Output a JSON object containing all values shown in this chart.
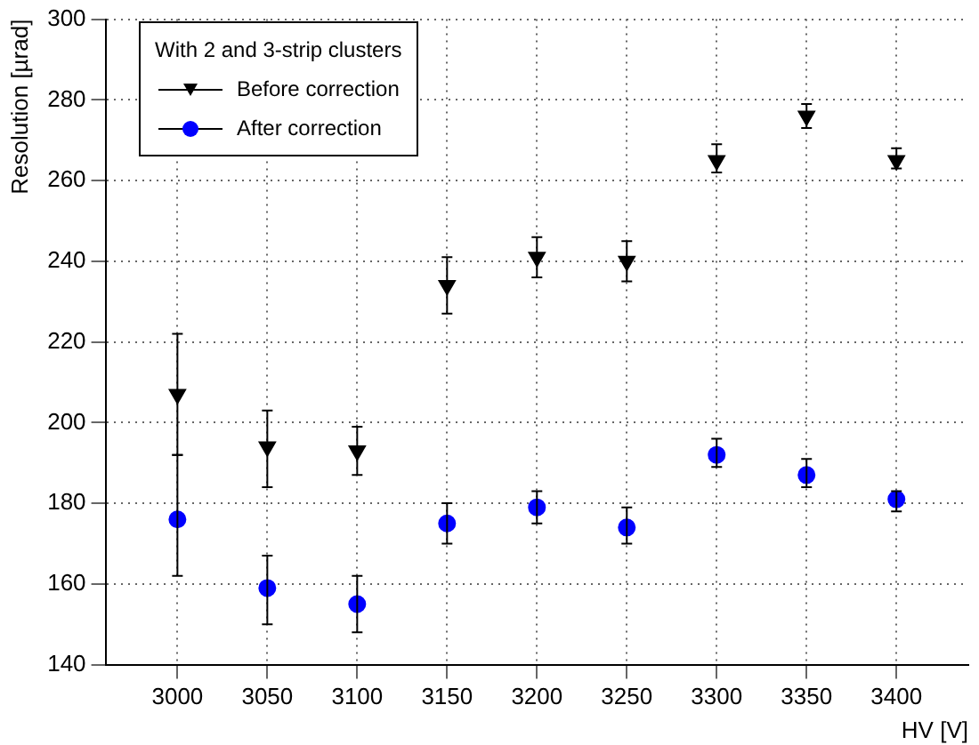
{
  "chart_data": {
    "type": "scatter",
    "xlabel": "HV [V]",
    "ylabel": "Resolution [µrad]",
    "legend_title": "With 2 and 3-strip clusters",
    "legend": "top left",
    "grid": true,
    "x": [
      3000,
      3050,
      3100,
      3150,
      3200,
      3250,
      3300,
      3350,
      3400
    ],
    "xlim": [
      2960,
      3440
    ],
    "xticks": [
      3000,
      3050,
      3100,
      3150,
      3200,
      3250,
      3300,
      3350,
      3400
    ],
    "ylim": [
      140,
      300
    ],
    "yticks": [
      140,
      160,
      180,
      200,
      220,
      240,
      260,
      280,
      300
    ],
    "series": [
      {
        "name": "Before correction",
        "color": "#000000",
        "marker": "triangle-down",
        "values": [
          207,
          194,
          193,
          234,
          241,
          240,
          265,
          276,
          265
        ],
        "errors": [
          [
            192,
            222
          ],
          [
            184,
            203
          ],
          [
            187,
            199
          ],
          [
            227,
            241
          ],
          [
            236,
            246
          ],
          [
            235,
            245
          ],
          [
            262,
            269
          ],
          [
            273,
            279
          ],
          [
            263,
            268
          ]
        ]
      },
      {
        "name": "After correction",
        "color": "#0000ff",
        "marker": "circle",
        "values": [
          176,
          159,
          155,
          175,
          179,
          174,
          192,
          187,
          181
        ],
        "errors": [
          [
            162,
            192
          ],
          [
            150,
            167
          ],
          [
            148,
            162
          ],
          [
            170,
            180
          ],
          [
            175,
            183
          ],
          [
            170,
            179
          ],
          [
            189,
            196
          ],
          [
            184,
            191
          ],
          [
            178,
            183
          ]
        ]
      }
    ]
  }
}
